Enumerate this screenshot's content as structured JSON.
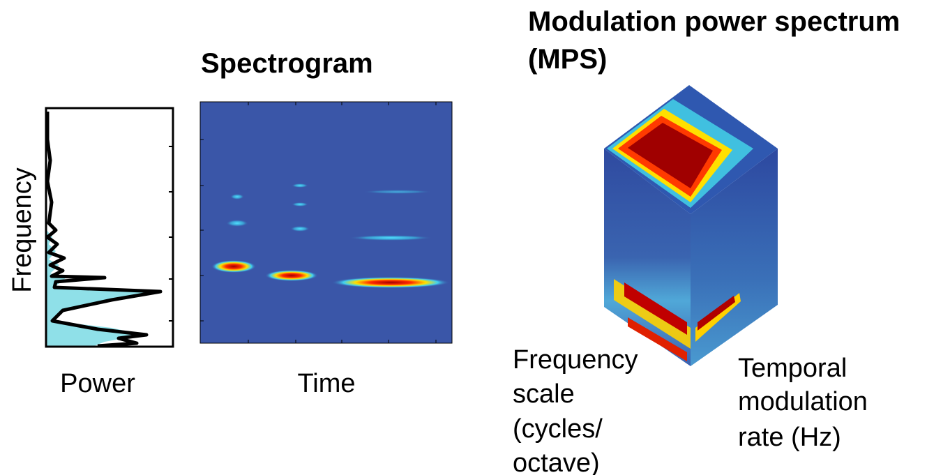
{
  "spectrogram": {
    "title": "Spectrogram",
    "y_label": "Frequency",
    "power_label": "Power",
    "x_label": "Time"
  },
  "mps": {
    "title_lines": [
      "Modulation power spectrum",
      "(MPS)"
    ],
    "frequency_axis_lines": [
      "Frequency",
      "scale",
      "(cycles/",
      "octave)"
    ],
    "temporal_axis_lines": [
      "Temporal",
      "modulation",
      "rate (Hz)"
    ]
  }
}
